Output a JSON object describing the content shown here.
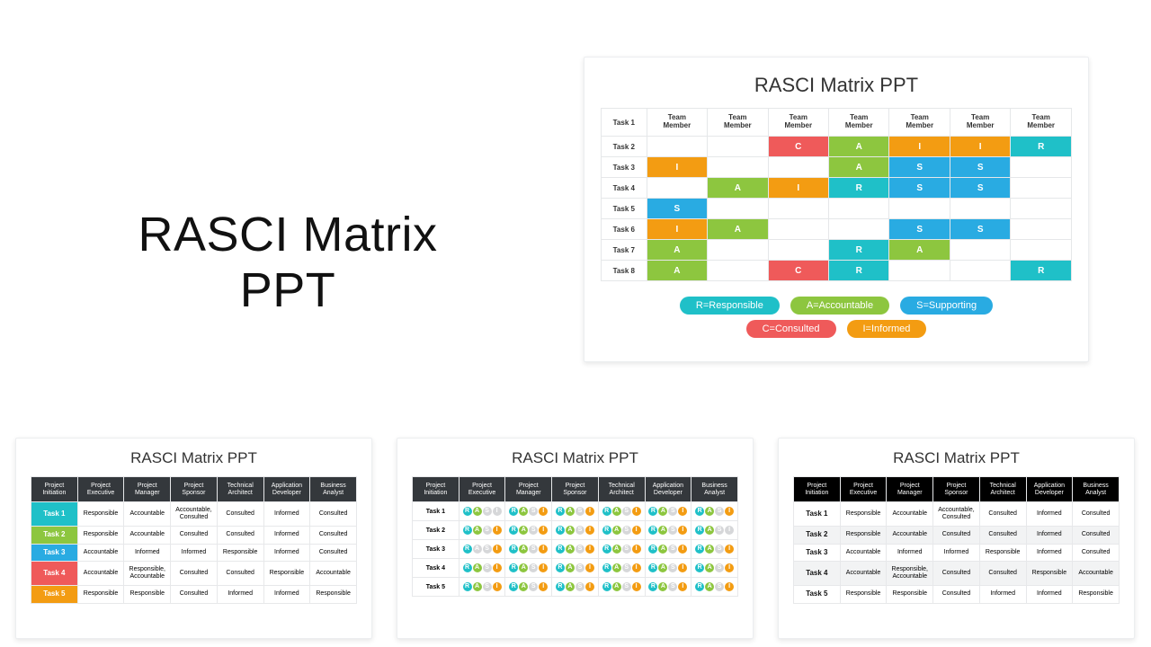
{
  "big_title": {
    "line1": "RASCI Matrix",
    "line2": "PPT"
  },
  "colors": {
    "R": "#1fc0c8",
    "A": "#8dc63f",
    "S": "#29abe2",
    "C": "#ef5a5a",
    "I": "#f39c12"
  },
  "slide1": {
    "title": "RASCI Matrix PPT",
    "row_header": "Task 1",
    "col_header": "Team Member",
    "rows": [
      {
        "label": "Task 2",
        "cells": [
          "",
          "",
          "C",
          "A",
          "I",
          "I",
          "R"
        ]
      },
      {
        "label": "Task 3",
        "cells": [
          "I",
          "",
          "",
          "A",
          "S",
          "S",
          ""
        ]
      },
      {
        "label": "Task 4",
        "cells": [
          "",
          "A",
          "I",
          "R",
          "S",
          "S",
          ""
        ]
      },
      {
        "label": "Task 5",
        "cells": [
          "S",
          "",
          "",
          "",
          "",
          "",
          ""
        ]
      },
      {
        "label": "Task 6",
        "cells": [
          "I",
          "A",
          "",
          "",
          "S",
          "S",
          ""
        ]
      },
      {
        "label": "Task 7",
        "cells": [
          "A",
          "",
          "",
          "R",
          "A",
          "",
          ""
        ]
      },
      {
        "label": "Task 8",
        "cells": [
          "A",
          "",
          "C",
          "R",
          "",
          "",
          "R"
        ]
      }
    ],
    "legend": [
      {
        "text": "R=Responsible",
        "color": "#1fc0c8"
      },
      {
        "text": "A=Accountable",
        "color": "#8dc63f"
      },
      {
        "text": "S=Supporting",
        "color": "#29abe2"
      },
      {
        "text": "C=Consulted",
        "color": "#ef5a5a"
      },
      {
        "text": "I=Informed",
        "color": "#f39c12"
      }
    ]
  },
  "roles": [
    "Project Initiation",
    "Project Executive",
    "Project Manager",
    "Project Sponsor",
    "Technical Architect",
    "Application Developer",
    "Business Analyst"
  ],
  "slide2": {
    "title": "RASCI Matrix PPT",
    "task_colors": [
      "#1fc0c8",
      "#8dc63f",
      "#29abe2",
      "#ef5a5a",
      "#f39c12"
    ],
    "rows": [
      {
        "task": "Task 1",
        "cells": [
          "Responsible",
          "Accountable",
          "Accountable, Consulted",
          "Consulted",
          "Informed",
          "Consulted"
        ]
      },
      {
        "task": "Task 2",
        "cells": [
          "Responsible",
          "Accountable",
          "Consulted",
          "Consulted",
          "Informed",
          "Consulted"
        ]
      },
      {
        "task": "Task 3",
        "cells": [
          "Accountable",
          "Informed",
          "Informed",
          "Responsible",
          "Informed",
          "Consulted"
        ]
      },
      {
        "task": "Task 4",
        "cells": [
          "Accountable",
          "Responsible, Accountable",
          "Consulted",
          "Consulted",
          "Responsible",
          "Accountable"
        ]
      },
      {
        "task": "Task 5",
        "cells": [
          "Responsible",
          "Responsible",
          "Consulted",
          "Informed",
          "Informed",
          "Responsible"
        ]
      }
    ]
  },
  "slide3": {
    "title": "RASCI Matrix PPT",
    "dot_letters": [
      "R",
      "A",
      "S",
      "I"
    ],
    "dot_colors": [
      "#1fc0c8",
      "#8dc63f",
      "#29abe2",
      "#f39c12"
    ],
    "rows": [
      {
        "task": "Task 1",
        "patterns": [
          [
            1,
            1,
            0,
            0
          ],
          [
            1,
            1,
            0,
            1
          ],
          [
            1,
            1,
            0,
            1
          ],
          [
            1,
            1,
            0,
            1
          ],
          [
            1,
            1,
            0,
            1
          ],
          [
            1,
            1,
            0,
            1
          ]
        ]
      },
      {
        "task": "Task 2",
        "patterns": [
          [
            1,
            1,
            0,
            1
          ],
          [
            1,
            1,
            0,
            1
          ],
          [
            1,
            1,
            0,
            1
          ],
          [
            1,
            1,
            0,
            1
          ],
          [
            1,
            1,
            0,
            1
          ],
          [
            1,
            1,
            0,
            0
          ]
        ]
      },
      {
        "task": "Task 3",
        "patterns": [
          [
            1,
            0,
            0,
            1
          ],
          [
            1,
            1,
            0,
            1
          ],
          [
            1,
            1,
            0,
            1
          ],
          [
            1,
            1,
            0,
            1
          ],
          [
            1,
            1,
            0,
            1
          ],
          [
            1,
            1,
            0,
            1
          ]
        ]
      },
      {
        "task": "Task 4",
        "patterns": [
          [
            1,
            1,
            0,
            1
          ],
          [
            1,
            1,
            0,
            1
          ],
          [
            1,
            1,
            0,
            1
          ],
          [
            1,
            1,
            0,
            1
          ],
          [
            1,
            1,
            0,
            1
          ],
          [
            1,
            1,
            0,
            1
          ]
        ]
      },
      {
        "task": "Task 5",
        "patterns": [
          [
            1,
            1,
            0,
            1
          ],
          [
            1,
            1,
            0,
            1
          ],
          [
            1,
            1,
            0,
            1
          ],
          [
            1,
            1,
            0,
            1
          ],
          [
            1,
            1,
            0,
            1
          ],
          [
            1,
            1,
            0,
            1
          ]
        ]
      }
    ]
  },
  "slide4": {
    "title": "RASCI Matrix PPT",
    "rows": [
      {
        "task": "Task 1",
        "cells": [
          "Responsible",
          "Accountable",
          "Accountable, Consulted",
          "Consulted",
          "Informed",
          "Consulted"
        ]
      },
      {
        "task": "Task 2",
        "cells": [
          "Responsible",
          "Accountable",
          "Consulted",
          "Consulted",
          "Informed",
          "Consulted"
        ]
      },
      {
        "task": "Task 3",
        "cells": [
          "Accountable",
          "Informed",
          "Informed",
          "Responsible",
          "Informed",
          "Consulted"
        ]
      },
      {
        "task": "Task 4",
        "cells": [
          "Accountable",
          "Responsible, Accountable",
          "Consulted",
          "Consulted",
          "Responsible",
          "Accountable"
        ]
      },
      {
        "task": "Task 5",
        "cells": [
          "Responsible",
          "Responsible",
          "Consulted",
          "Informed",
          "Informed",
          "Responsible"
        ]
      }
    ]
  }
}
